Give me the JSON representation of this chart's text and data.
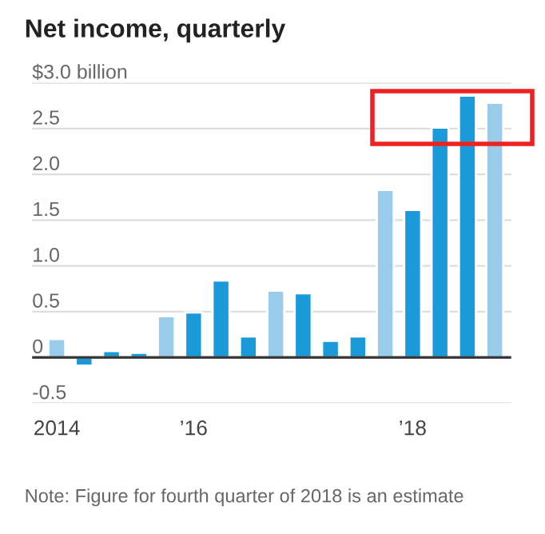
{
  "chart_data": {
    "type": "bar",
    "title": "Net income, quarterly",
    "categories": [
      "2014",
      null,
      null,
      null,
      null,
      "’16",
      null,
      null,
      null,
      null,
      null,
      null,
      null,
      "’18",
      null,
      null,
      null
    ],
    "values": [
      0.2,
      -0.09,
      0.07,
      0.05,
      0.45,
      0.49,
      0.84,
      0.23,
      0.73,
      0.7,
      0.18,
      0.23,
      1.83,
      1.61,
      2.51,
      2.86,
      2.78
    ],
    "colors": [
      "#99cbeb",
      "#1a9ad9",
      "#1a9ad9",
      "#1a9ad9",
      "#99cbeb",
      "#1a9ad9",
      "#1a9ad9",
      "#1a9ad9",
      "#99cbeb",
      "#1a9ad9",
      "#1a9ad9",
      "#1a9ad9",
      "#99cbeb",
      "#1a9ad9",
      "#1a9ad9",
      "#1a9ad9",
      "#99cbeb"
    ],
    "ylim": [
      -0.5,
      3.0
    ],
    "yticks": [
      -0.5,
      0,
      0.5,
      {
        "value": 1,
        "label": "1.0"
      },
      1.5,
      {
        "value": 2,
        "label": "2.0"
      },
      2.5,
      {
        "value": 3,
        "label": "$3.0 billion"
      }
    ],
    "grid": "y",
    "ref_lines": [
      {
        "axis": "y",
        "value": 0,
        "color": "#333333"
      }
    ],
    "annotations": [
      "Note: Figure for fourth quarter of 2018 is an estimate"
    ]
  }
}
